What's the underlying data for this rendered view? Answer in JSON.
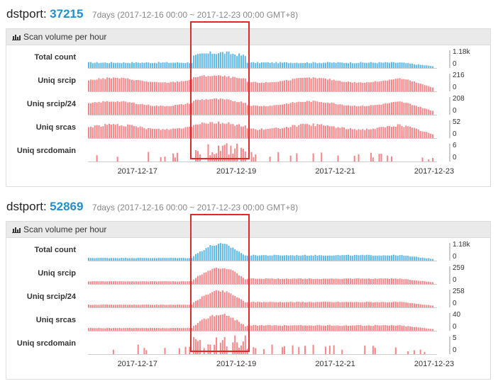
{
  "panels": [
    {
      "header": {
        "label": "dstport:",
        "port": "37215",
        "range": "7days (2017-12-16 00:00 ~ 2017-12-23 00:00 GMT+8)"
      },
      "title": "Scan volume per hour",
      "x_ticks": [
        "2017-12-17",
        "2017-12-19",
        "2017-12-21",
        "2017-12-23"
      ]
    },
    {
      "header": {
        "label": "dstport:",
        "port": "52869",
        "range": "7days (2017-12-16 00:00 ~ 2017-12-23 00:00 GMT+8)"
      },
      "title": "Scan volume per hour",
      "x_ticks": [
        "2017-12-17",
        "2017-12-19",
        "2017-12-21",
        "2017-12-23"
      ]
    }
  ],
  "colors": {
    "total": "#5bb7e8",
    "uniq": "#f4868a",
    "highlight": "#e02a2a",
    "port": "#1f8fcf"
  },
  "chart_data": [
    {
      "type": "bar",
      "title": "Scan volume per hour",
      "x_range": [
        "2017-12-16 00:00",
        "2017-12-23 00:00"
      ],
      "bins": 168,
      "highlight_range": [
        "2017-12-18 03:00",
        "2017-12-19 04:00"
      ],
      "series": [
        {
          "name": "Total count",
          "max_label": "1.18k",
          "min_label": "0",
          "max": 1180,
          "pattern": "peak",
          "noise": 0.25
        },
        {
          "name": "Uniq srcip",
          "max_label": "216",
          "min_label": "0",
          "max": 216,
          "pattern": "smooth",
          "noise": 0.12
        },
        {
          "name": "Uniq srcip/24",
          "max_label": "208",
          "min_label": "0",
          "max": 208,
          "pattern": "smooth",
          "noise": 0.12
        },
        {
          "name": "Uniq srcas",
          "max_label": "52",
          "min_label": "0",
          "max": 52,
          "pattern": "smooth",
          "noise": 0.2
        },
        {
          "name": "Uniq srcdomain",
          "max_label": "6",
          "min_label": "0",
          "max": 6,
          "pattern": "sparse",
          "noise": 0.5
        }
      ]
    },
    {
      "type": "bar",
      "title": "Scan volume per hour",
      "x_range": [
        "2017-12-16 00:00",
        "2017-12-23 00:00"
      ],
      "bins": 168,
      "highlight_range": [
        "2017-12-18 03:00",
        "2017-12-19 04:00"
      ],
      "series": [
        {
          "name": "Total count",
          "max_label": "1.18k",
          "min_label": "0",
          "max": 1180,
          "pattern": "bump",
          "noise": 0.2
        },
        {
          "name": "Uniq srcip",
          "max_label": "259",
          "min_label": "0",
          "max": 259,
          "pattern": "bump",
          "noise": 0.15
        },
        {
          "name": "Uniq srcip/24",
          "max_label": "258",
          "min_label": "0",
          "max": 258,
          "pattern": "bump",
          "noise": 0.15
        },
        {
          "name": "Uniq srcas",
          "max_label": "40",
          "min_label": "0",
          "max": 40,
          "pattern": "bump",
          "noise": 0.2
        },
        {
          "name": "Uniq srcdomain",
          "max_label": "5",
          "min_label": "0",
          "max": 5,
          "pattern": "sparse",
          "noise": 0.5
        }
      ]
    }
  ]
}
